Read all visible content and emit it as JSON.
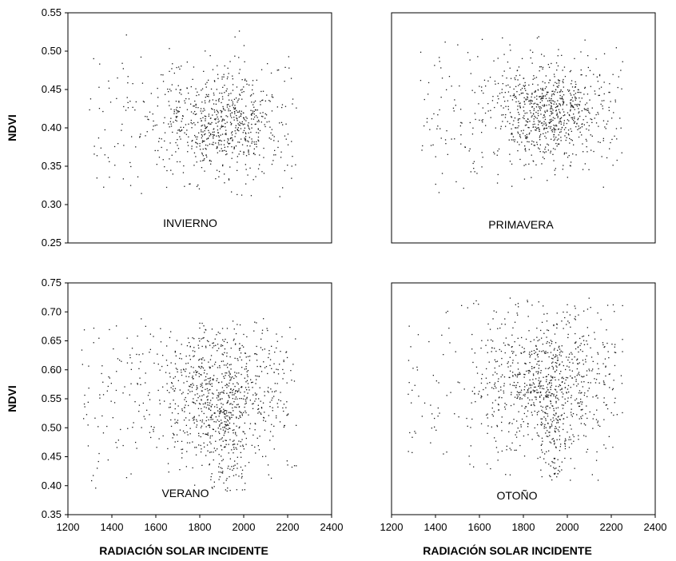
{
  "chart_data": [
    {
      "type": "scatter",
      "panel_label": "INVIERNO",
      "ylabel": "NDVI",
      "xlabel": "",
      "ylim": [
        0.25,
        0.55
      ],
      "yticks": [
        "0.55",
        "0.50",
        "0.45",
        "0.40",
        "0.35",
        "0.30",
        "0.25"
      ],
      "xlim": [
        1200,
        2400
      ],
      "xticks": [],
      "cluster": {
        "x_center": 1900,
        "y_center": 0.405,
        "x_spread": 180,
        "y_spread": 0.035,
        "n_points": 820,
        "x_range": [
          1280,
          2240
        ],
        "y_range": [
          0.31,
          0.53
        ]
      }
    },
    {
      "type": "scatter",
      "panel_label": "PRIMAVERA",
      "ylabel": "",
      "xlabel": "",
      "ylim": [
        0.25,
        0.55
      ],
      "yticks": [],
      "xlim": [
        1200,
        2400
      ],
      "xticks": [],
      "cluster": {
        "x_center": 1900,
        "y_center": 0.42,
        "x_spread": 170,
        "y_spread": 0.03,
        "n_points": 900,
        "x_range": [
          1320,
          2250
        ],
        "y_range": [
          0.31,
          0.52
        ]
      }
    },
    {
      "type": "scatter",
      "panel_label": "VERANO",
      "ylabel": "NDVI",
      "xlabel": "RADIACIÓN SOLAR INCIDENTE",
      "ylim": [
        0.35,
        0.75
      ],
      "yticks": [
        "0.75",
        "0.70",
        "0.65",
        "0.60",
        "0.55",
        "0.50",
        "0.45",
        "0.40",
        "0.35"
      ],
      "xlim": [
        1200,
        2400
      ],
      "xticks": [
        "1200",
        "1400",
        "1600",
        "1800",
        "2000",
        "2200",
        "2400"
      ],
      "cluster": {
        "x_center": 1880,
        "y_center": 0.56,
        "x_spread": 200,
        "y_spread": 0.06,
        "n_points": 1100,
        "x_range": [
          1260,
          2240
        ],
        "y_range": [
          0.39,
          0.69
        ]
      }
    },
    {
      "type": "scatter",
      "panel_label": "OTOÑO",
      "ylabel": "",
      "xlabel": "RADIACIÓN SOLAR INCIDENTE",
      "ylim": [
        0.35,
        0.75
      ],
      "yticks": [],
      "xlim": [
        1200,
        2400
      ],
      "xticks": [
        "1200",
        "1400",
        "1600",
        "1800",
        "2000",
        "2200",
        "2400"
      ],
      "cluster": {
        "x_center": 1900,
        "y_center": 0.58,
        "x_spread": 190,
        "y_spread": 0.06,
        "n_points": 1050,
        "x_range": [
          1270,
          2250
        ],
        "y_range": [
          0.41,
          0.73
        ]
      }
    }
  ]
}
